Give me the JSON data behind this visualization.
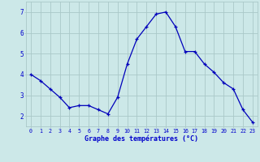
{
  "hours": [
    0,
    1,
    2,
    3,
    4,
    5,
    6,
    7,
    8,
    9,
    10,
    11,
    12,
    13,
    14,
    15,
    16,
    17,
    18,
    19,
    20,
    21,
    22,
    23
  ],
  "temps": [
    4.0,
    3.7,
    3.3,
    2.9,
    2.4,
    2.5,
    2.5,
    2.3,
    2.1,
    2.9,
    4.5,
    5.7,
    6.3,
    6.9,
    7.0,
    6.3,
    5.1,
    5.1,
    4.5,
    4.1,
    3.6,
    3.3,
    2.3,
    1.7
  ],
  "xlabel": "Graphe des températures (°C)",
  "line_color": "#0000bb",
  "marker_color": "#0000bb",
  "bg_color": "#cce8e8",
  "grid_color": "#aac8c8",
  "axis_label_color": "#0000cc",
  "tick_label_color": "#0000cc",
  "ylim": [
    1.5,
    7.5
  ],
  "yticks": [
    2,
    3,
    4,
    5,
    6,
    7
  ],
  "xlim": [
    -0.5,
    23.5
  ]
}
